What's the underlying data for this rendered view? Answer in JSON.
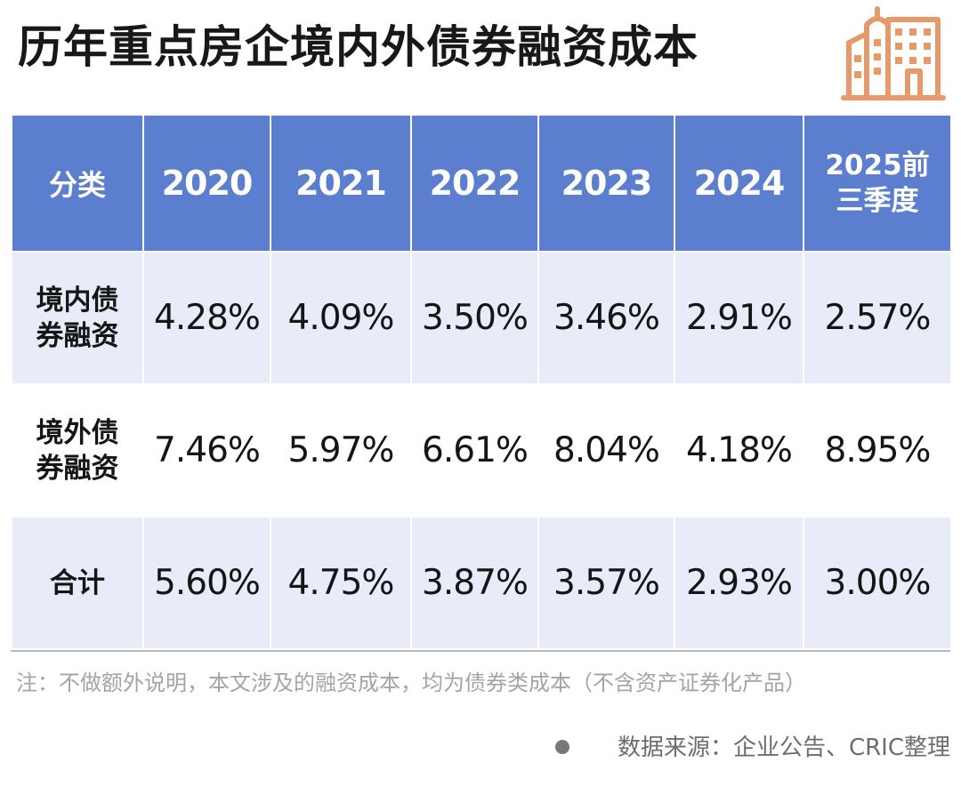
{
  "title": "历年重点房企境内外债券融资成本",
  "icon": "building-logo-icon",
  "accent_color": "#5c7ece",
  "header_color": "#5c7ece",
  "row_color": "#e8ecf8",
  "logo_color": "#e8996a",
  "chart_data": {
    "type": "table",
    "title": "历年重点房企境内外债券融资成本",
    "columns": [
      "分类",
      "2020",
      "2021",
      "2022",
      "2023",
      "2024",
      "2025前\n三季度"
    ],
    "rows": [
      {
        "label": "境内债\n券融资",
        "values": [
          "4.28%",
          "4.09%",
          "3.50%",
          "3.46%",
          "2.91%",
          "2.57%"
        ]
      },
      {
        "label": "境外债\n券融资",
        "values": [
          "7.46%",
          "5.97%",
          "6.61%",
          "8.04%",
          "4.18%",
          "8.95%"
        ]
      },
      {
        "label": "合计",
        "values": [
          "5.60%",
          "4.75%",
          "3.87%",
          "3.57%",
          "2.93%",
          "3.00%"
        ]
      }
    ]
  },
  "footer": {
    "note": "注：不做额外说明，本文涉及的融资成本，均为债券类成本（不含资产证券化产品）",
    "source": "数据来源：企业公告、CRIC整理"
  }
}
